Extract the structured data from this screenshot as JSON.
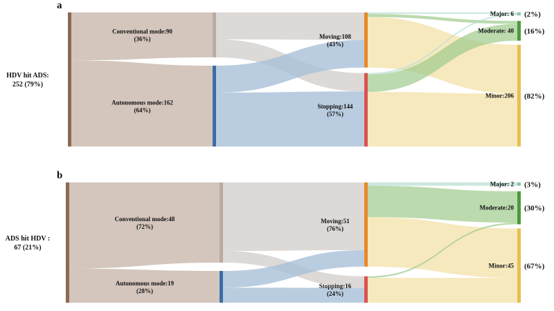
{
  "panels": [
    {
      "letter": "a",
      "root": {
        "line1": "HDV hit  ADS:",
        "line2": "252 (79%)"
      },
      "modes": [
        {
          "name": "Conventional mode:90",
          "pct": "(36%)",
          "value": 90
        },
        {
          "name": "Autonomous mode:162",
          "pct": "(64%)",
          "value": 162
        }
      ],
      "states": [
        {
          "name": "Moving:108",
          "pct": "(43%)",
          "value": 108
        },
        {
          "name": "Stopping:144",
          "pct": "(57%)",
          "value": 144
        }
      ],
      "severities": [
        {
          "name": "Major: 6",
          "pct": "(2%)",
          "value": 6
        },
        {
          "name": "Moderate: 40",
          "pct": "(16%)",
          "value": 40
        },
        {
          "name": "Minor:206",
          "pct": "(82%)",
          "value": 206
        }
      ],
      "mode_state_flows": [
        {
          "from": 0,
          "to": 0,
          "value": 54
        },
        {
          "from": 0,
          "to": 1,
          "value": 36
        },
        {
          "from": 1,
          "to": 0,
          "value": 54
        },
        {
          "from": 1,
          "to": 1,
          "value": 108
        }
      ],
      "state_severity_flows": [
        {
          "from": 0,
          "to": 0,
          "value": 3
        },
        {
          "from": 0,
          "to": 1,
          "value": 6
        },
        {
          "from": 0,
          "to": 2,
          "value": 99
        },
        {
          "from": 1,
          "to": 0,
          "value": 3
        },
        {
          "from": 1,
          "to": 1,
          "value": 34
        },
        {
          "from": 1,
          "to": 2,
          "value": 107
        }
      ]
    },
    {
      "letter": "b",
      "root": {
        "line1": "ADS hit HDV :",
        "line2": "67 (21%)"
      },
      "modes": [
        {
          "name": "Conventional mode:48",
          "pct": "(72%)",
          "value": 48
        },
        {
          "name": "Autonomous mode:19",
          "pct": "(28%)",
          "value": 19
        }
      ],
      "states": [
        {
          "name": "Moving:51",
          "pct": "(76%)",
          "value": 51
        },
        {
          "name": "Stopping:16",
          "pct": "(24%)",
          "value": 16
        }
      ],
      "severities": [
        {
          "name": "Major: 2",
          "pct": "(3%)",
          "value": 2
        },
        {
          "name": "Moderate:20",
          "pct": "(30%)",
          "value": 20
        },
        {
          "name": "Minor:45",
          "pct": "(67%)",
          "value": 45
        }
      ],
      "mode_state_flows": [
        {
          "from": 0,
          "to": 0,
          "value": 41
        },
        {
          "from": 0,
          "to": 1,
          "value": 7
        },
        {
          "from": 1,
          "to": 0,
          "value": 10
        },
        {
          "from": 1,
          "to": 1,
          "value": 9
        }
      ],
      "state_severity_flows": [
        {
          "from": 0,
          "to": 0,
          "value": 2
        },
        {
          "from": 0,
          "to": 1,
          "value": 19
        },
        {
          "from": 0,
          "to": 2,
          "value": 30
        },
        {
          "from": 1,
          "to": 0,
          "value": 0
        },
        {
          "from": 1,
          "to": 1,
          "value": 1
        },
        {
          "from": 1,
          "to": 2,
          "value": 15
        }
      ]
    }
  ],
  "colors": {
    "root": "#8b6a55",
    "conventional_node": "#b9aca3",
    "autonomous_node": "#3a6ea5",
    "moving_node": "#e8892a",
    "stopping_node": "#d9534f",
    "major_node": "#86c5b3",
    "moderate_node": "#4c9a3a",
    "minor_node": "#e5c04e",
    "flow_root_mode": "#cdbcb1",
    "flow_conventional": "#d3cfcc",
    "flow_autonomous": "#a9c0d8",
    "flow_major": "#b7ddd2",
    "flow_moderate": "#9ecb8c",
    "flow_minor": "#f3e0a3"
  }
}
